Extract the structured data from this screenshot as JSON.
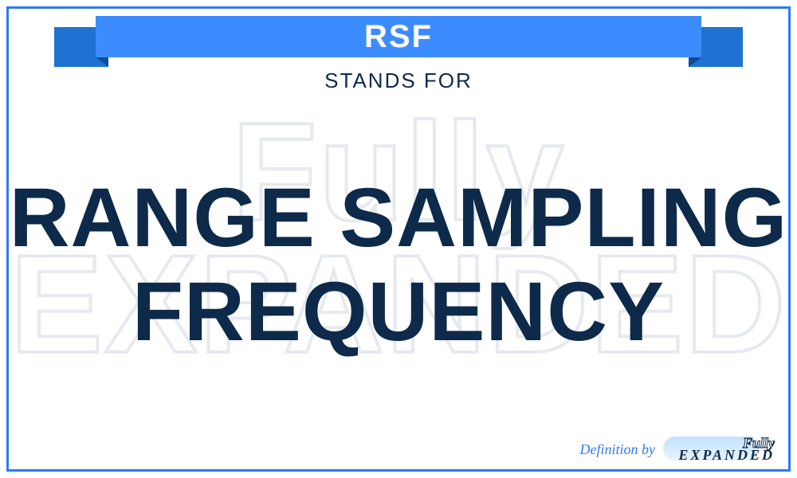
{
  "border_color": "#2e7af4",
  "background_color": "#ffffff",
  "ribbon": {
    "abbr": "RSF",
    "center_bg": "#3d8cff",
    "tail_bg": "#1f72d2",
    "fold_bg": "#0e4c9e",
    "text_color": "#ffffff",
    "font_size_pt": 30
  },
  "stands_for": {
    "label": "STANDS FOR",
    "color": "#0e2a4a",
    "font_size_pt": 20
  },
  "definition": {
    "text": "RANGE SAMPLING FREQUENCY",
    "color": "#0e2a4a",
    "font_size_pt": 78
  },
  "watermark": {
    "line1": "Fully",
    "line2": "EXPANDED",
    "stroke_color": "#e6e9ed",
    "font_size_pt": 130
  },
  "footer": {
    "definition_by": "Definition by",
    "definition_by_color": "#2e7af4",
    "logo_top": "Fully",
    "logo_bottom": "EXPANDED",
    "logo_text_color": "#0e2a4a",
    "logo_bg_gradient_top": "#bfe1ff",
    "logo_bg_gradient_bottom": "#e9f4ff"
  }
}
